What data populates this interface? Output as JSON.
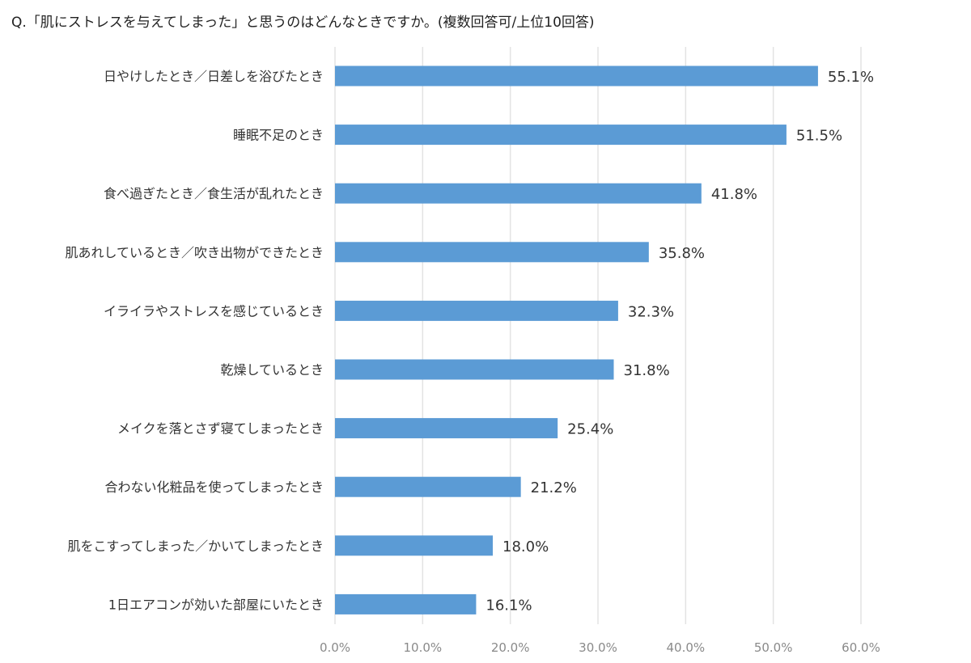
{
  "chart_data": {
    "type": "bar",
    "orientation": "horizontal",
    "title": "Q.「肌にストレスを与えてしまった」と思うのはどんなときですか。(複数回答可/上位10回答)",
    "categories": [
      "日やけしたとき／日差しを浴びたとき",
      "睡眠不足のとき",
      "食べ過ぎたとき／食生活が乱れたとき",
      "肌あれしているとき／吹き出物ができたとき",
      "イライラやストレスを感じているとき",
      "乾燥しているとき",
      "メイクを落とさず寝てしまったとき",
      "合わない化粧品を使ってしまったとき",
      "肌をこすってしまった／かいてしまったとき",
      "1日エアコンが効いた部屋にいたとき"
    ],
    "values": [
      55.1,
      51.5,
      41.8,
      35.8,
      32.3,
      31.8,
      25.4,
      21.2,
      18.0,
      16.1
    ],
    "value_labels": [
      "55.1%",
      "51.5%",
      "41.8%",
      "35.8%",
      "32.3%",
      "31.8%",
      "25.4%",
      "21.2%",
      "18.0%",
      "16.1%"
    ],
    "xlim": [
      0,
      60
    ],
    "xticks": [
      0,
      10,
      20,
      30,
      40,
      50,
      60
    ],
    "xtick_labels": [
      "0.0%",
      "10.0%",
      "20.0%",
      "30.0%",
      "40.0%",
      "50.0%",
      "60.0%"
    ],
    "xlabel": "",
    "ylabel": "",
    "grid": true,
    "bar_color": "#5b9bd5",
    "grid_color": "#e3e3e3"
  }
}
